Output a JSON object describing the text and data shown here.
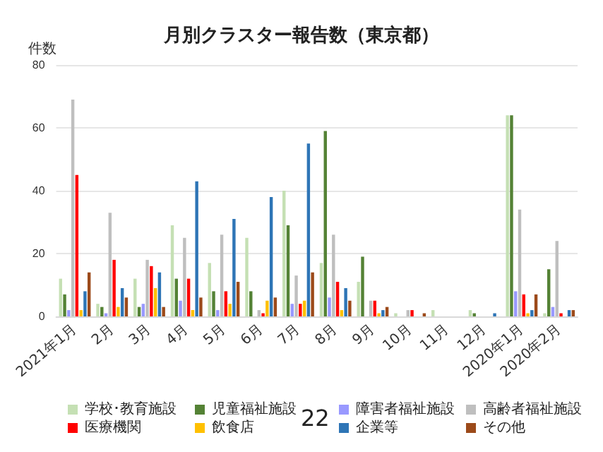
{
  "chart_data": {
    "type": "bar",
    "title": "月別クラスター報告数（東京都）",
    "ylabel": "件数",
    "categories": [
      "2021年1月",
      "2月",
      "3月",
      "4月",
      "5月",
      "6月",
      "7月",
      "8月",
      "9月",
      "10月",
      "11月",
      "12月",
      "2020年1月",
      "2020年2月"
    ],
    "series": [
      {
        "name": "学校･教育施設",
        "color": "#c5e0b4",
        "values": [
          12,
          4,
          12,
          29,
          17,
          25,
          40,
          17,
          11,
          1,
          2,
          2,
          64,
          1
        ]
      },
      {
        "name": "児童福祉施設",
        "color": "#548235",
        "values": [
          7,
          3,
          3,
          12,
          8,
          8,
          29,
          59,
          19,
          0,
          0,
          1,
          64,
          15
        ]
      },
      {
        "name": "障害者福祉施設",
        "color": "#9999ff",
        "values": [
          2,
          1,
          4,
          5,
          2,
          0,
          4,
          6,
          0,
          0,
          0,
          0,
          8,
          3
        ]
      },
      {
        "name": "高齢者福祉施設",
        "color": "#bfbfbf",
        "values": [
          69,
          33,
          18,
          25,
          26,
          2,
          13,
          26,
          5,
          2,
          0,
          0,
          34,
          24
        ]
      },
      {
        "name": "医療機関",
        "color": "#ff0000",
        "values": [
          45,
          18,
          16,
          12,
          8,
          1,
          4,
          11,
          5,
          2,
          0,
          0,
          7,
          1
        ]
      },
      {
        "name": "飲食店",
        "color": "#ffc000",
        "values": [
          2,
          3,
          9,
          2,
          4,
          5,
          5,
          2,
          1,
          0,
          0,
          0,
          1,
          0
        ]
      },
      {
        "name": "企業等",
        "color": "#2e75b6",
        "values": [
          8,
          9,
          14,
          43,
          31,
          38,
          55,
          9,
          2,
          0,
          0,
          1,
          2,
          2
        ]
      },
      {
        "name": "その他",
        "color": "#9c4a1a",
        "values": [
          14,
          6,
          3,
          6,
          11,
          6,
          14,
          5,
          3,
          1,
          0,
          0,
          7,
          2
        ]
      }
    ],
    "ylim": [
      0,
      80
    ],
    "yticks": [
      0,
      20,
      40,
      60,
      80
    ],
    "grid": "y",
    "legend": "bottom",
    "annotations": [
      "22"
    ]
  }
}
